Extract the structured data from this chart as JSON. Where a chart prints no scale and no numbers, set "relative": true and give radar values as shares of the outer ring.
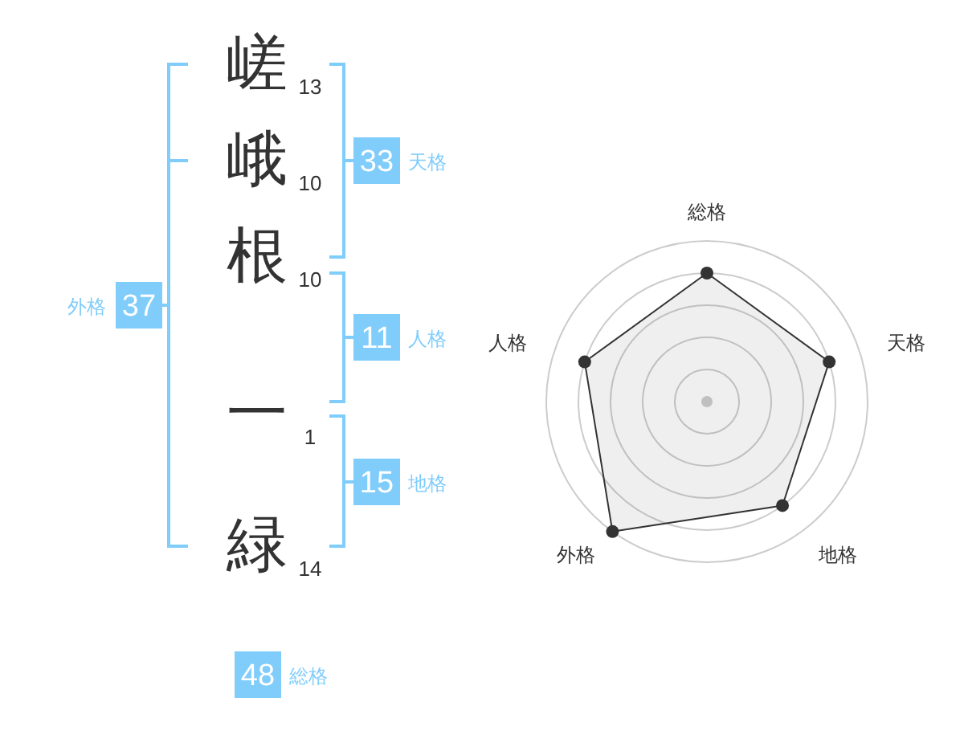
{
  "chart_data": [
    {
      "type": "other",
      "categories": [
        "嵯",
        "峨",
        "根",
        "一",
        "緑"
      ],
      "values": [
        13,
        10,
        10,
        1,
        14
      ],
      "data_labels": true
    },
    {
      "type": "other",
      "categories": [
        "天格",
        "人格",
        "地格",
        "外格",
        "総格"
      ],
      "values": [
        33,
        11,
        15,
        37,
        48
      ],
      "data_labels": true,
      "colors": [
        "#80cdfb",
        "#80cdfb",
        "#80cdfb",
        "#80cdfb",
        "#80cdfb"
      ]
    },
    {
      "type": "radar",
      "categories": [
        "総格",
        "天格",
        "地格",
        "外格",
        "人格"
      ],
      "relative": true,
      "grid": true,
      "marker": "circle",
      "series": [
        {
          "color": "#333333",
          "values": [
            0.8,
            0.8,
            0.8,
            1,
            0.8
          ]
        }
      ]
    }
  ]
}
